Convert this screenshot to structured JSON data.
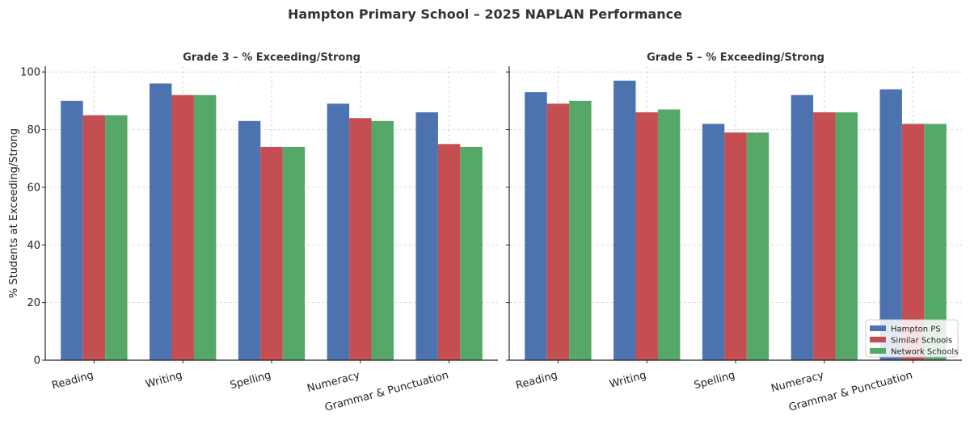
{
  "title": "Hampton Primary School – 2025 NAPLAN Performance",
  "chart_data": [
    {
      "type": "bar",
      "title": "Grade 3 – % Exceeding/Strong",
      "xlabel": "",
      "ylabel": "% Students at Exceeding/Strong",
      "ylim": [
        0,
        102
      ],
      "yticks": [
        0,
        20,
        40,
        60,
        80,
        100
      ],
      "grid": true,
      "categories": [
        "Reading",
        "Writing",
        "Spelling",
        "Numeracy",
        "Grammar & Punctuation"
      ],
      "series": [
        {
          "name": "Hampton PS",
          "color": "#4c72b0",
          "values": [
            90,
            96,
            83,
            89,
            86
          ]
        },
        {
          "name": "Similar Schools",
          "color": "#c44e52",
          "values": [
            85,
            92,
            74,
            84,
            75
          ]
        },
        {
          "name": "Network Schools",
          "color": "#55a868",
          "values": [
            85,
            92,
            74,
            83,
            74
          ]
        }
      ]
    },
    {
      "type": "bar",
      "title": "Grade 5 – % Exceeding/Strong",
      "xlabel": "",
      "ylabel": "",
      "ylim": [
        0,
        102
      ],
      "yticks": [
        0,
        20,
        40,
        60,
        80,
        100
      ],
      "grid": true,
      "legend": "lower-right",
      "categories": [
        "Reading",
        "Writing",
        "Spelling",
        "Numeracy",
        "Grammar & Punctuation"
      ],
      "series": [
        {
          "name": "Hampton PS",
          "color": "#4c72b0",
          "values": [
            93,
            97,
            82,
            92,
            94
          ]
        },
        {
          "name": "Similar Schools",
          "color": "#c44e52",
          "values": [
            89,
            86,
            79,
            86,
            82
          ]
        },
        {
          "name": "Network Schools",
          "color": "#55a868",
          "values": [
            90,
            87,
            79,
            86,
            82
          ]
        }
      ]
    }
  ]
}
